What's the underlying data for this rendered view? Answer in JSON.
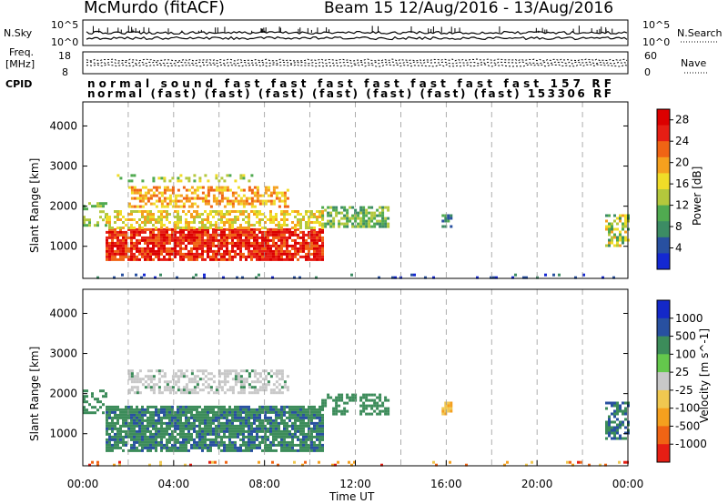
{
  "header": {
    "title": "McMurdo (fitACF)",
    "beam_label": "Beam 15",
    "date_range": "12/Aug/2016 - 13/Aug/2016"
  },
  "labels": {
    "nsky": "N.Sky",
    "nsearch": "N.Search",
    "freq_line1": "Freq.",
    "freq_line2": "[MHz]",
    "nave": "Nave",
    "cpid": "CPID",
    "tick_1e5": "10^5",
    "tick_1e0": "10^0",
    "freq_hi": "18",
    "freq_lo": "8",
    "nave_hi": "60",
    "nave_lo": "0"
  },
  "cpid_text": {
    "row1": "normal sound  fast  fast  fast  fast  fast  fast  fast  157 RF",
    "row2": "normal  (fast)  (fast)  (fast)  (fast)  (fast)  (fast)  (fast)  153306 RF"
  },
  "colors": {
    "power_scale": [
      "#1428d2",
      "#2850a0",
      "#3c8c64",
      "#50aa50",
      "#b4c83c",
      "#f0dc28",
      "#f5a01e",
      "#f06414",
      "#e61e14",
      "#dc0000"
    ],
    "velocity_scale": [
      "#e61e14",
      "#f06414",
      "#f5a01e",
      "#f0c850",
      "#c8c8c8",
      "#64c84c",
      "#3c8c5a",
      "#2850a0",
      "#1428c8"
    ],
    "gray_ground": "#c8c8c8"
  },
  "chart_data": [
    {
      "type": "heatmap",
      "title": "Power",
      "xlabel": "Time UT",
      "ylabel": "Slant Range [km]",
      "xlim": [
        "00:00",
        "24:00"
      ],
      "ylim": [
        200,
        4600
      ],
      "x_ticks": [
        "00:00",
        "04:00",
        "08:00",
        "12:00",
        "16:00",
        "20:00",
        "00:00"
      ],
      "y_ticks": [
        1000,
        2000,
        3000,
        4000
      ],
      "colorbar": {
        "label": "Power [dB]",
        "ticks": [
          4,
          8,
          12,
          16,
          20,
          24,
          28
        ],
        "range": [
          0,
          30
        ]
      }
    },
    {
      "type": "heatmap",
      "title": "Velocity",
      "xlabel": "Time UT",
      "ylabel": "Slant Range [km]",
      "xlim": [
        "00:00",
        "24:00"
      ],
      "ylim": [
        200,
        4600
      ],
      "x_ticks": [
        "00:00",
        "04:00",
        "08:00",
        "12:00",
        "16:00",
        "20:00",
        "00:00"
      ],
      "y_ticks": [
        1000,
        2000,
        3000,
        4000
      ],
      "colorbar": {
        "label": "Velocity [m s^-1]",
        "ticks": [
          1000,
          500,
          100,
          25,
          -25,
          -100,
          -500,
          -1000
        ]
      }
    }
  ]
}
